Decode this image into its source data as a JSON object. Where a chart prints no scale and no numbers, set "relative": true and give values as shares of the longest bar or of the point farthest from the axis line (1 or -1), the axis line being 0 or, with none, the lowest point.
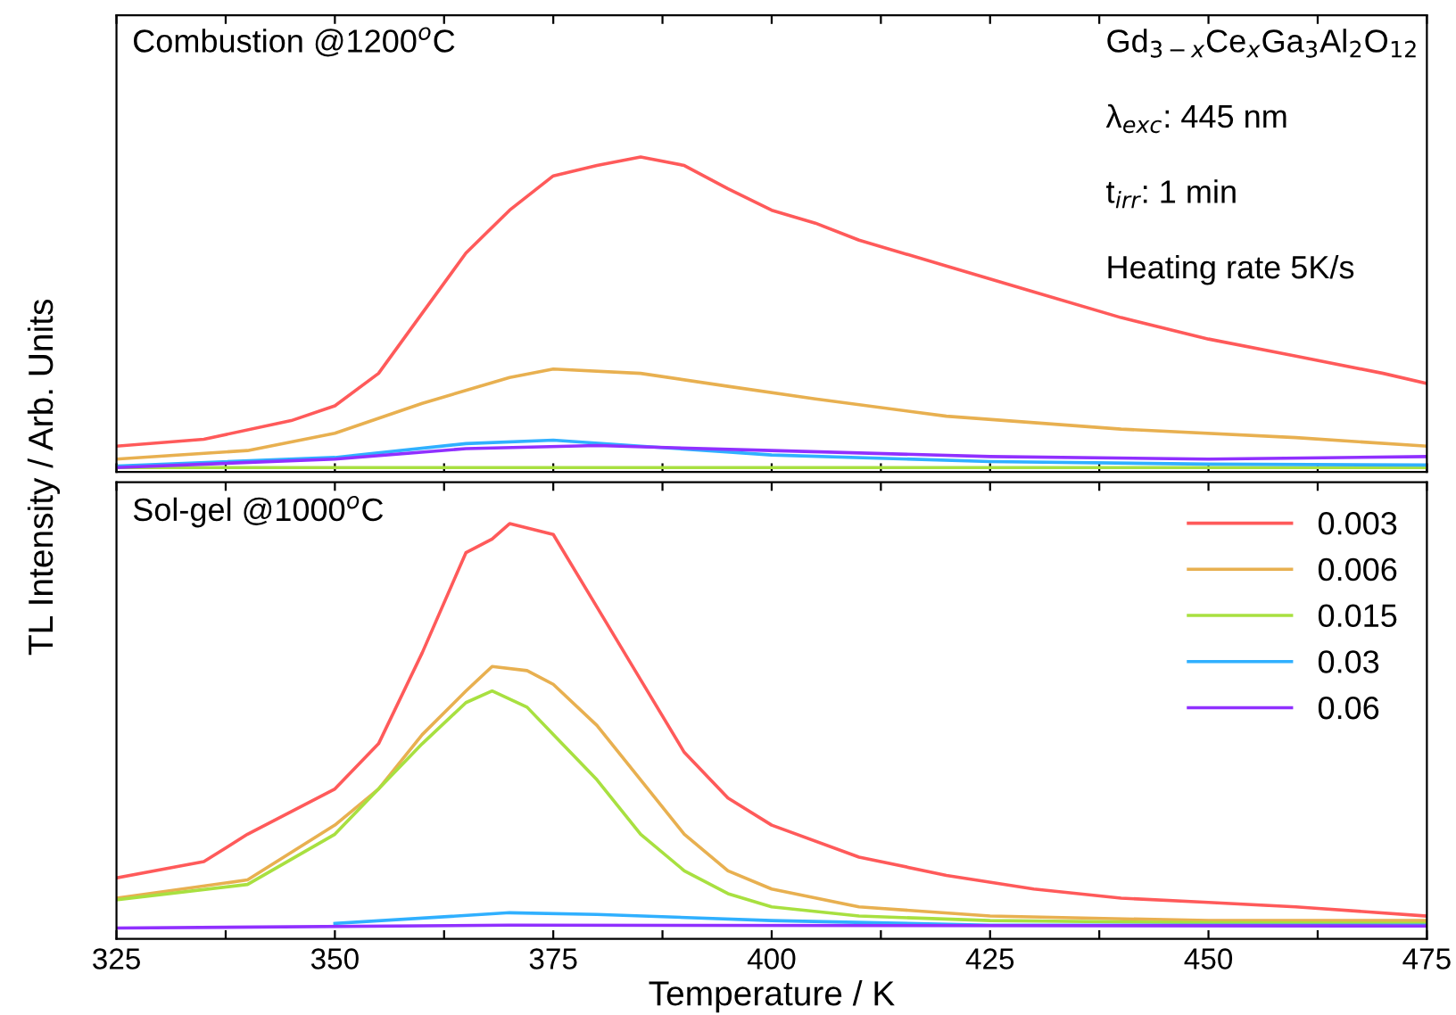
{
  "chart_data": [
    {
      "type": "line",
      "relative": true,
      "ylabel": "TL Intensity / Arb. Units",
      "tick_labels": false,
      "grid": false,
      "legend": false,
      "xlim": [
        325,
        475
      ],
      "xticks": [
        325,
        {
          "value": 337.5,
          "label": null
        },
        350,
        {
          "value": 362.5,
          "label": null
        },
        375,
        {
          "value": 387.5,
          "label": null
        },
        400,
        {
          "value": 412.5,
          "label": null
        },
        425,
        {
          "value": 437.5,
          "label": null
        },
        450,
        {
          "value": 462.5,
          "label": null
        },
        475
      ],
      "annotations": [
        "Combustion @1200$^{o}$C",
        "Gd$_{3−x}$Ce$_{x}$Ga$_{3}$Al$_{2}$O$_{12}$",
        "λ$_{exc}$: 445 nm",
        "t$_{irr}$: 1 min",
        "Heating rate 5K/s"
      ],
      "series": [
        {
          "color": "#ff5a5a",
          "x": [
            325,
            335,
            345,
            350,
            355,
            360,
            365,
            370,
            375,
            380,
            385,
            390,
            395,
            400,
            405,
            410,
            420,
            430,
            440,
            450,
            460,
            470,
            475
          ],
          "values": [
            0.082,
            0.104,
            0.163,
            0.21,
            0.313,
            0.504,
            0.695,
            0.831,
            0.94,
            0.973,
            1.0,
            0.973,
            0.899,
            0.831,
            0.79,
            0.736,
            0.654,
            0.572,
            0.49,
            0.422,
            0.368,
            0.313,
            0.281
          ]
        },
        {
          "color": "#e8b050",
          "x": [
            325,
            340,
            350,
            360,
            370,
            375,
            385,
            395,
            405,
            420,
            440,
            460,
            475
          ],
          "values": [
            0.041,
            0.068,
            0.123,
            0.218,
            0.3,
            0.327,
            0.313,
            0.272,
            0.232,
            0.177,
            0.136,
            0.109,
            0.082
          ]
        },
        {
          "color": "#a8e040",
          "x": [
            325,
            400,
            475
          ],
          "values": [
            0.014,
            0.014,
            0.014
          ]
        },
        {
          "color": "#30b0ff",
          "x": [
            325,
            350,
            365,
            375,
            385,
            400,
            425,
            450,
            475
          ],
          "values": [
            0.019,
            0.046,
            0.09,
            0.101,
            0.082,
            0.054,
            0.033,
            0.025,
            0.022
          ]
        },
        {
          "color": "#9030ff",
          "x": [
            325,
            350,
            365,
            380,
            400,
            425,
            450,
            475
          ],
          "values": [
            0.014,
            0.041,
            0.074,
            0.084,
            0.068,
            0.049,
            0.041,
            0.049
          ]
        }
      ]
    },
    {
      "type": "line",
      "relative": true,
      "xlabel": "Temperature / K",
      "tick_labels": "x",
      "grid": false,
      "legend": "top right",
      "xlim": [
        325,
        475
      ],
      "xticks": [
        325,
        {
          "value": 337.5,
          "label": null
        },
        350,
        {
          "value": 362.5,
          "label": null
        },
        375,
        {
          "value": 387.5,
          "label": null
        },
        400,
        {
          "value": 412.5,
          "label": null
        },
        425,
        {
          "value": 437.5,
          "label": null
        },
        450,
        {
          "value": 462.5,
          "label": null
        },
        475
      ],
      "annotations": [
        "Sol-gel @1000$^{o}$C"
      ],
      "series": [
        {
          "name": "0.003",
          "color": "#ff5a5a",
          "x": [
            325,
            335,
            340,
            350,
            355,
            360,
            365,
            368,
            370,
            375,
            380,
            385,
            390,
            395,
            400,
            410,
            420,
            430,
            440,
            450,
            460,
            475
          ],
          "values": [
            0.147,
            0.186,
            0.252,
            0.361,
            0.47,
            0.689,
            0.93,
            0.963,
            1.0,
            0.974,
            0.799,
            0.624,
            0.449,
            0.339,
            0.274,
            0.197,
            0.153,
            0.12,
            0.098,
            0.088,
            0.077,
            0.055
          ]
        },
        {
          "name": "0.006",
          "color": "#e8b050",
          "x": [
            325,
            340,
            350,
            355,
            360,
            365,
            368,
            372,
            375,
            380,
            385,
            390,
            395,
            400,
            410,
            425,
            450,
            475
          ],
          "values": [
            0.098,
            0.142,
            0.274,
            0.361,
            0.492,
            0.597,
            0.656,
            0.646,
            0.613,
            0.514,
            0.383,
            0.252,
            0.164,
            0.12,
            0.077,
            0.055,
            0.044,
            0.044
          ]
        },
        {
          "name": "0.015",
          "color": "#a8e040",
          "x": [
            325,
            340,
            350,
            355,
            360,
            365,
            368,
            372,
            375,
            380,
            385,
            390,
            395,
            400,
            410,
            425,
            450,
            475
          ],
          "values": [
            0.094,
            0.131,
            0.252,
            0.361,
            0.47,
            0.569,
            0.597,
            0.558,
            0.492,
            0.383,
            0.252,
            0.164,
            0.109,
            0.077,
            0.055,
            0.044,
            0.039,
            0.037
          ]
        },
        {
          "name": "0.03",
          "color": "#30b0ff",
          "x": [
            350,
            370,
            380,
            400,
            425,
            475
          ],
          "values": [
            0.037,
            0.063,
            0.059,
            0.044,
            0.033,
            0.033
          ]
        },
        {
          "name": "0.06",
          "color": "#9030ff",
          "x": [
            325,
            370,
            475
          ],
          "values": [
            0.026,
            0.033,
            0.031
          ]
        }
      ]
    }
  ]
}
